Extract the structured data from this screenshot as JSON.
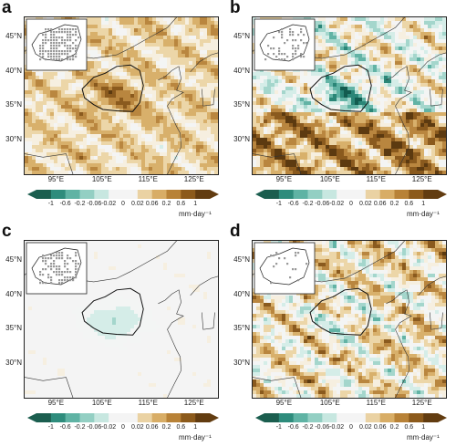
{
  "chart_data": [
    {
      "type": "heatmap",
      "panel": "a",
      "lat_ticks": [
        "30°N",
        "35°N",
        "40°N",
        "45°N"
      ],
      "lon_ticks": [
        "95°E",
        "105°E",
        "115°E",
        "125°E"
      ],
      "colorbar_ticks": [
        "-1",
        "-0.6",
        "-0.2",
        "-0.06",
        "-0.02",
        "0",
        "0.02",
        "0.06",
        "0.2",
        "0.6",
        "1"
      ],
      "colorbar_units": "mm·day⁻¹",
      "pattern": "brown"
    },
    {
      "type": "heatmap",
      "panel": "b",
      "lat_ticks": [
        "30°N",
        "35°N",
        "40°N",
        "45°N"
      ],
      "lon_ticks": [
        "95°E",
        "105°E",
        "115°E",
        "125°E"
      ],
      "colorbar_ticks": [
        "-1",
        "-0.6",
        "-0.2",
        "-0.06",
        "-0.02",
        "0",
        "0.02",
        "0.06",
        "0.2",
        "0.6",
        "1"
      ],
      "colorbar_units": "mm·day⁻¹",
      "pattern": "mixed-strong"
    },
    {
      "type": "heatmap",
      "panel": "c",
      "lat_ticks": [
        "30°N",
        "35°N",
        "40°N",
        "45°N"
      ],
      "lon_ticks": [
        "95°E",
        "105°E",
        "115°E",
        "125°E"
      ],
      "colorbar_ticks": [
        "-1",
        "-0.6",
        "-0.2",
        "-0.06",
        "-0.02",
        "0",
        "0.02",
        "0.06",
        "0.2",
        "0.6",
        "1"
      ],
      "colorbar_units": "mm·day⁻¹",
      "pattern": "teal-light"
    },
    {
      "type": "heatmap",
      "panel": "d",
      "lat_ticks": [
        "30°N",
        "35°N",
        "40°N",
        "45°N"
      ],
      "lon_ticks": [
        "95°E",
        "105°E",
        "115°E",
        "125°E"
      ],
      "colorbar_ticks": [
        "-1",
        "-0.6",
        "-0.2",
        "-0.06",
        "-0.02",
        "0",
        "0.02",
        "0.06",
        "0.2",
        "0.6",
        "1"
      ],
      "colorbar_units": "mm·day⁻¹",
      "pattern": "mixed"
    }
  ],
  "colors": {
    "colorbar": [
      "#1b5e4f",
      "#2e8c7c",
      "#5fb3a4",
      "#93cfc3",
      "#c7e7e0",
      "#f4f4f4",
      "#f4f4f4",
      "#ead2a3",
      "#d8ad66",
      "#b88237",
      "#8c5a1b",
      "#623c10"
    ]
  }
}
